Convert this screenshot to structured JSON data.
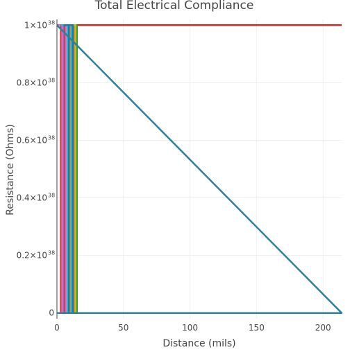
{
  "chart_data": {
    "type": "line",
    "title": "Total Electrical Compliance",
    "xlabel": "Distance (mils)",
    "ylabel": "Resistance (Ohms)",
    "xlim": [
      0,
      214
    ],
    "ylim": [
      -2e+36,
      1.02e+38
    ],
    "grid": true,
    "legend": "none",
    "x_ticks": [
      {
        "value": 0,
        "label": "0"
      },
      {
        "value": 50,
        "label": "50"
      },
      {
        "value": 100,
        "label": "100"
      },
      {
        "value": 150,
        "label": "150"
      },
      {
        "value": 200,
        "label": "200"
      }
    ],
    "y_ticks": [
      {
        "value": 0,
        "mantissa": "0",
        "exponent": ""
      },
      {
        "value": 2e+37,
        "mantissa": "0.2×10",
        "exponent": "38"
      },
      {
        "value": 4e+37,
        "mantissa": "0.4×10",
        "exponent": "38"
      },
      {
        "value": 6e+37,
        "mantissa": "0.6×10",
        "exponent": "38"
      },
      {
        "value": 8e+37,
        "mantissa": "0.8×10",
        "exponent": "38"
      },
      {
        "value": 1e+38,
        "mantissa": "1×10",
        "exponent": "38"
      }
    ],
    "series": [
      {
        "color": "#d62728",
        "x": [
          0,
          3,
          3,
          6,
          6,
          214
        ],
        "y": [
          1e+38,
          1e+38,
          0,
          0,
          1e+38,
          1e+38
        ]
      },
      {
        "color": "#e377c2",
        "x": [
          1,
          4,
          4,
          7,
          7,
          1
        ],
        "y": [
          1e+38,
          1e+38,
          0,
          0,
          1e+38,
          1e+38
        ]
      },
      {
        "color": "#9467bd",
        "x": [
          2,
          5,
          5,
          8,
          8,
          2
        ],
        "y": [
          1e+38,
          1e+38,
          0,
          0,
          1e+38,
          1e+38
        ]
      },
      {
        "color": "#ff7f0e",
        "x": [
          4,
          10,
          10,
          13,
          13,
          4
        ],
        "y": [
          1e+38,
          1e+38,
          0,
          0,
          1e+38,
          1e+38
        ]
      },
      {
        "color": "#2ca02c",
        "x": [
          6,
          12,
          12,
          15,
          15,
          6
        ],
        "y": [
          1e+38,
          1e+38,
          0,
          0,
          1e+38,
          1e+38
        ]
      },
      {
        "color": "#bcbd22",
        "x": [
          8,
          11,
          11,
          14,
          14,
          8
        ],
        "y": [
          1e+38,
          1e+38,
          0,
          0,
          1e+38,
          1e+38
        ]
      },
      {
        "color": "#17becf",
        "x": [
          3,
          8,
          8,
          11,
          11,
          3
        ],
        "y": [
          1e+38,
          1e+38,
          0,
          0,
          1e+38,
          1e+38
        ]
      },
      {
        "color": "#1f77b4",
        "x": [
          5,
          9,
          9,
          12,
          12,
          5
        ],
        "y": [
          1e+38,
          1e+38,
          0,
          0,
          1e+38,
          1e+38
        ]
      },
      {
        "color": "#2f7f9e",
        "x": [
          0,
          214,
          0
        ],
        "y": [
          1e+38,
          0,
          0
        ]
      }
    ]
  }
}
